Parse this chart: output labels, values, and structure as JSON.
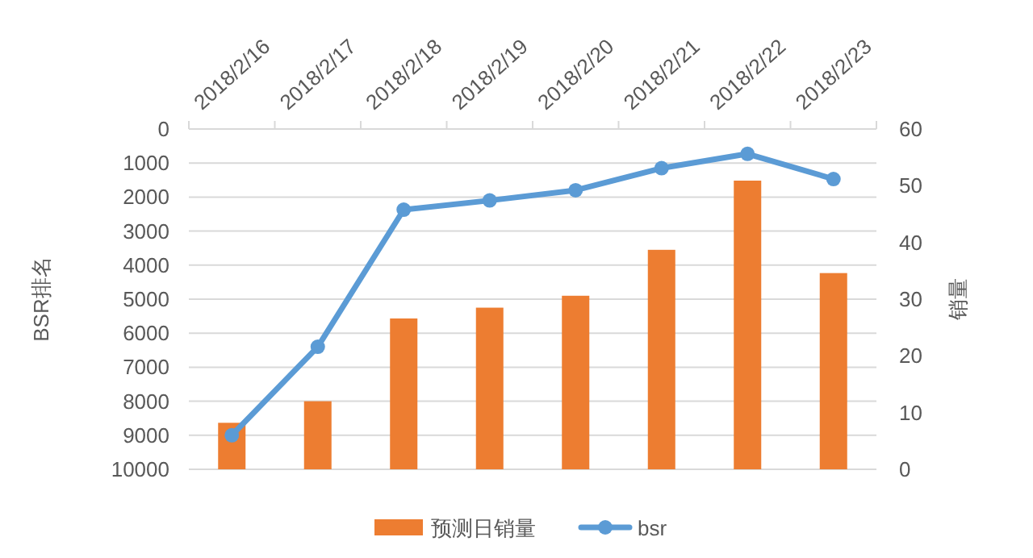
{
  "chart_data": {
    "type": "bar",
    "categories": [
      "2018/2/16",
      "2018/2/17",
      "2018/2/18",
      "2018/2/19",
      "2018/2/20",
      "2018/2/21",
      "2018/2/22",
      "2018/2/23"
    ],
    "series": [
      {
        "name": "预测日销量",
        "axis": "y2",
        "color": "#ed7d31",
        "values": [
          8.2,
          12,
          26.6,
          28.5,
          30.6,
          38.7,
          50.9,
          34.6
        ]
      },
      {
        "name": "bsr",
        "type": "line",
        "axis": "y",
        "color": "#5b9bd5",
        "marker": "circle",
        "values": [
          9000,
          6400,
          2370,
          2100,
          1800,
          1150,
          730,
          1470
        ]
      }
    ],
    "ylabel": "BSR排名",
    "y2label": "销量",
    "ylim": [
      10000,
      0
    ],
    "yticks": [
      0,
      1000,
      2000,
      3000,
      4000,
      5000,
      6000,
      7000,
      8000,
      9000,
      10000
    ],
    "y2lim": [
      0,
      60
    ],
    "y2ticks": [
      0,
      10,
      20,
      30,
      40,
      50,
      60
    ],
    "grid": "y",
    "legend": "bottom"
  }
}
